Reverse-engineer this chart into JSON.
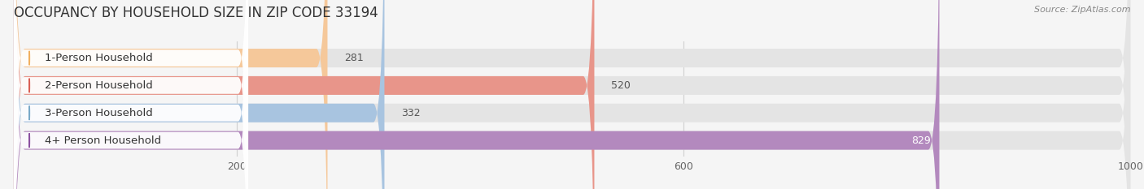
{
  "title": "OCCUPANCY BY HOUSEHOLD SIZE IN ZIP CODE 33194",
  "source": "Source: ZipAtlas.com",
  "categories": [
    "1-Person Household",
    "2-Person Household",
    "3-Person Household",
    "4+ Person Household"
  ],
  "values": [
    281,
    520,
    332,
    829
  ],
  "bar_colors": [
    "#f5c89a",
    "#e8958a",
    "#a8c4e0",
    "#b389be"
  ],
  "label_accent_colors": [
    "#f0b060",
    "#d96055",
    "#7aaac8",
    "#8b50a0"
  ],
  "xlim_min": 0,
  "xlim_max": 1000,
  "xticks": [
    200,
    600,
    1000
  ],
  "bar_height": 0.68,
  "background_color": "#f5f5f5",
  "bar_bg_color": "#e4e4e4",
  "title_fontsize": 12,
  "label_fontsize": 9.5,
  "value_fontsize": 9,
  "white": "#ffffff",
  "dark_text": "#333333",
  "mid_text": "#555555",
  "source_color": "#888888",
  "grid_color": "#d0d0d0"
}
